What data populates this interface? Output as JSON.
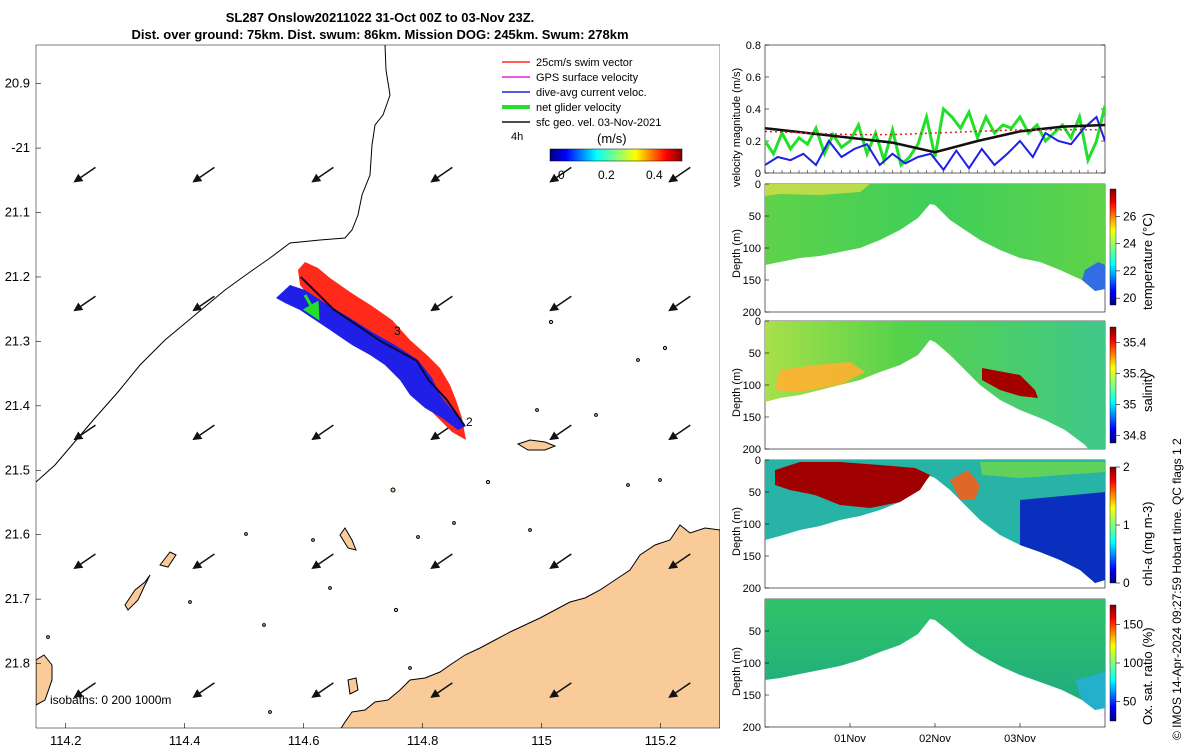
{
  "header": {
    "title_line1": "SL287 Onslow20211022 31-Oct 00Z to 03-Nov 23Z.",
    "title_line2": "Dist. over ground: 75km. Dist. swum: 86km. Mission DOG: 245km. Swum: 278km"
  },
  "side_label": "© IMOS 14-Apr-2024 09:27:59 Hobart time. QC flags 1  2",
  "colors": {
    "land": "#f9cb98",
    "ocean": "#ffffff",
    "glider_dac": "#1f1fe8",
    "glider_swim": "#ff2a1a",
    "net_velocity": "#22e02a"
  },
  "chart_data": [
    {
      "type": "map",
      "xlim": [
        114.15,
        115.3
      ],
      "ylim": [
        -21.9,
        -20.84
      ],
      "x_ticks": [
        114.2,
        114.4,
        114.6,
        114.8,
        115,
        115.2
      ],
      "x_tick_labels": [
        "114.2",
        "114.4",
        "114.6",
        "114.8",
        "115",
        "115.2"
      ],
      "y_ticks": [
        -20.9,
        -21,
        -21.1,
        -21.2,
        -21.3,
        -21.4,
        -21.5,
        -21.6,
        -21.7,
        -21.8
      ],
      "y_tick_labels": [
        "20.9",
        "-21",
        "21.1",
        "21.2",
        "21.3",
        "21.4",
        "21.5",
        "21.6",
        "21.7",
        "21.8"
      ],
      "legend": {
        "position": "top-right",
        "entries": [
          {
            "label": "25cm/s swim vector",
            "color": "#ff2a1a"
          },
          {
            "label": "GPS surface velocity",
            "color": "#e020e0"
          },
          {
            "label": "dive-avg current veloc.",
            "color": "#1f1fe8"
          },
          {
            "label": "net glider velocity",
            "color": "#22e02a"
          },
          {
            "label": "sfc geo. vel. 03-Nov-2021",
            "color": "#111111"
          }
        ],
        "note": "4h"
      },
      "colorbar": {
        "label": "(m/s)",
        "range": [
          0,
          0.5
        ],
        "ticks": [
          0,
          0.2,
          0.4
        ],
        "tick_labels": [
          "0",
          "0.2",
          "0.4"
        ]
      },
      "waypoint_labels": [
        {
          "text": "3",
          "lon": 114.75,
          "lat": -21.29
        },
        {
          "text": "2",
          "lon": 114.89,
          "lat": -21.425
        }
      ],
      "glider_track": [
        [
          114.595,
          -21.2
        ],
        [
          114.65,
          -21.25
        ],
        [
          114.73,
          -21.3
        ],
        [
          114.79,
          -21.33
        ],
        [
          114.81,
          -21.36
        ],
        [
          114.84,
          -21.39
        ],
        [
          114.87,
          -21.43
        ]
      ],
      "isobaths_label": "isobaths: 0   200  1000m",
      "current_arrows": {
        "lons": [
          114.25,
          114.45,
          114.65,
          114.85,
          115.05,
          115.25
        ],
        "lats": [
          -21.03,
          -21.23,
          -21.43,
          -21.63,
          -21.83
        ],
        "dlon": -0.035,
        "dlat": -0.022
      }
    },
    {
      "type": "line",
      "ylabel": "velocity magnitude (m/s)",
      "ylim": [
        0,
        0.8
      ],
      "y_ticks": [
        0,
        0.2,
        0.4,
        0.6,
        0.8
      ],
      "xlim": [
        0,
        4
      ],
      "series": [
        {
          "color": "#22e02a",
          "x": [
            0,
            0.1,
            0.2,
            0.3,
            0.4,
            0.5,
            0.6,
            0.7,
            0.8,
            0.9,
            1.0,
            1.1,
            1.2,
            1.3,
            1.4,
            1.5,
            1.6,
            1.7,
            1.8,
            1.9,
            2.0,
            2.1,
            2.2,
            2.3,
            2.4,
            2.5,
            2.6,
            2.7,
            2.8,
            2.9,
            3.0,
            3.1,
            3.2,
            3.3,
            3.4,
            3.5,
            3.6,
            3.7,
            3.8,
            3.9,
            4.0
          ],
          "values": [
            0.2,
            0.12,
            0.25,
            0.15,
            0.22,
            0.18,
            0.28,
            0.12,
            0.24,
            0.16,
            0.2,
            0.3,
            0.12,
            0.25,
            0.08,
            0.27,
            0.05,
            0.1,
            0.18,
            0.35,
            0.1,
            0.4,
            0.35,
            0.28,
            0.38,
            0.22,
            0.35,
            0.25,
            0.3,
            0.28,
            0.35,
            0.25,
            0.3,
            0.2,
            0.25,
            0.3,
            0.22,
            0.35,
            0.08,
            0.2,
            0.42
          ]
        },
        {
          "color": "#1f1fe8",
          "x": [
            0,
            0.15,
            0.3,
            0.45,
            0.6,
            0.75,
            0.9,
            1.05,
            1.2,
            1.35,
            1.5,
            1.65,
            1.8,
            1.95,
            2.1,
            2.25,
            2.4,
            2.55,
            2.7,
            2.85,
            3.0,
            3.15,
            3.3,
            3.45,
            3.6,
            3.75,
            3.9,
            4.0
          ],
          "values": [
            0.05,
            0.1,
            0.08,
            0.12,
            0.05,
            0.2,
            0.1,
            0.15,
            0.18,
            0.05,
            0.12,
            0.06,
            0.1,
            0.12,
            0.02,
            0.14,
            0.03,
            0.15,
            0.05,
            0.12,
            0.2,
            0.1,
            0.25,
            0.2,
            0.18,
            0.28,
            0.35,
            0.2
          ]
        },
        {
          "color": "#111111",
          "x": [
            0,
            0.5,
            1.0,
            1.5,
            2.0,
            2.5,
            3.0,
            3.5,
            4.0
          ],
          "values": [
            0.28,
            0.25,
            0.22,
            0.19,
            0.13,
            0.2,
            0.26,
            0.29,
            0.3
          ]
        },
        {
          "color": "#e02020",
          "x": [
            0,
            0.5,
            1.0,
            1.5,
            2.0,
            2.5,
            3.0,
            3.5,
            4.0
          ],
          "values": [
            0.26,
            0.25,
            0.24,
            0.24,
            0.25,
            0.26,
            0.27,
            0.27,
            0.27
          ]
        }
      ]
    },
    {
      "type": "heatmap",
      "variable": "temperature",
      "ylabel": "Depth (m)",
      "ylim": [
        200,
        0
      ],
      "y_ticks": [
        0,
        50,
        100,
        150,
        200
      ],
      "colorbar_label": "temperature (°C)",
      "colorbar_range": [
        19.5,
        28
      ],
      "colorbar_ticks": [
        "20",
        "22",
        "24",
        "26"
      ]
    },
    {
      "type": "heatmap",
      "variable": "salinity",
      "ylabel": "Depth (m)",
      "ylim": [
        200,
        0
      ],
      "y_ticks": [
        0,
        50,
        100,
        150,
        200
      ],
      "colorbar_label": "salinity",
      "colorbar_range": [
        34.75,
        35.5
      ],
      "colorbar_ticks": [
        "34.8",
        "35",
        "35.2",
        "35.4"
      ]
    },
    {
      "type": "heatmap",
      "variable": "chlorophyll",
      "ylabel": "Depth (m)",
      "ylim": [
        200,
        0
      ],
      "y_ticks": [
        0,
        50,
        100,
        150,
        200
      ],
      "colorbar_label": "chl-a (mg m-3)",
      "colorbar_range": [
        0,
        2
      ],
      "colorbar_ticks": [
        "0",
        "1",
        "2"
      ]
    },
    {
      "type": "heatmap",
      "variable": "oxygen",
      "ylabel": "Depth (m)",
      "ylim": [
        200,
        0
      ],
      "y_ticks": [
        50,
        100,
        150,
        200
      ],
      "colorbar_label": "Ox. sat. ratio (%)",
      "colorbar_range": [
        25,
        175
      ],
      "colorbar_ticks": [
        "50",
        "100",
        "150"
      ],
      "x_ticks": [
        1,
        2,
        3
      ],
      "x_tick_labels": [
        "01Nov",
        "02Nov",
        "03Nov"
      ],
      "xlim": [
        0,
        4
      ]
    }
  ]
}
